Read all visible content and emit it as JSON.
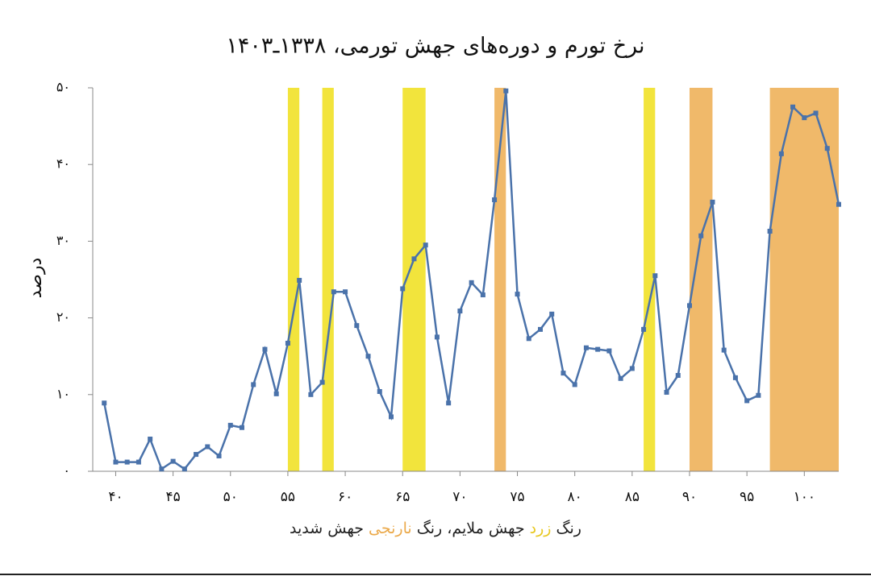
{
  "chart_data": {
    "type": "line",
    "title": "نرخ تورم و دوره‌های جهش تورمی، ۱۳۳۸ـ۱۴۰۳",
    "y_label": "درصد",
    "caption": [
      {
        "text": "رنگ",
        "color": "#222222"
      },
      {
        "text": "زرد",
        "color": "#e8c820"
      },
      {
        "text": "جهش ملایم، رنگ",
        "color": "#222222"
      },
      {
        "text": "نارنجی",
        "color": "#eba94a"
      },
      {
        "text": "جهش شدید",
        "color": "#222222"
      }
    ],
    "x": [
      39,
      40,
      41,
      42,
      43,
      44,
      45,
      46,
      47,
      48,
      49,
      50,
      51,
      52,
      53,
      54,
      55,
      56,
      57,
      58,
      59,
      60,
      61,
      62,
      63,
      64,
      65,
      66,
      67,
      68,
      69,
      70,
      71,
      72,
      73,
      74,
      75,
      76,
      77,
      78,
      79,
      80,
      81,
      82,
      83,
      84,
      85,
      86,
      87,
      88,
      89,
      90,
      91,
      92,
      93,
      94,
      95,
      96,
      97,
      98,
      99,
      100,
      101,
      102,
      103
    ],
    "series": [
      {
        "color": "#4a72aa",
        "values": [
          8.9,
          1.2,
          1.2,
          1.2,
          4.2,
          0.3,
          1.3,
          0.3,
          2.2,
          3.2,
          2.0,
          6.0,
          5.7,
          11.3,
          15.9,
          10.1,
          16.7,
          24.9,
          10.0,
          11.6,
          23.4,
          23.4,
          19.0,
          15.0,
          10.4,
          7.1,
          23.8,
          27.7,
          29.5,
          17.5,
          8.9,
          20.9,
          24.6,
          23.0,
          35.4,
          49.6,
          23.1,
          17.3,
          18.5,
          20.5,
          12.8,
          11.3,
          16.1,
          15.9,
          15.7,
          12.1,
          13.4,
          18.5,
          25.5,
          10.3,
          12.5,
          21.6,
          30.7,
          35.1,
          15.8,
          12.2,
          9.2,
          9.9,
          31.3,
          41.4,
          47.5,
          46.1,
          46.7,
          42.1,
          34.8
        ]
      }
    ],
    "bands": [
      {
        "start": 55,
        "end": 56,
        "color": "#f2e43c"
      },
      {
        "start": 58,
        "end": 59,
        "color": "#f2e43c"
      },
      {
        "start": 65,
        "end": 67,
        "color": "#f2e43c"
      },
      {
        "start": 73,
        "end": 74,
        "color": "#f0b96a"
      },
      {
        "start": 86,
        "end": 87,
        "color": "#f2e43c"
      },
      {
        "start": 90,
        "end": 92,
        "color": "#f0b96a"
      },
      {
        "start": 97,
        "end": 103,
        "color": "#f0b96a"
      }
    ],
    "xlim": [
      38,
      103
    ],
    "ylim": [
      0,
      50
    ],
    "xticks": [
      {
        "value": 40,
        "label": "۴۰"
      },
      {
        "value": 45,
        "label": "۴۵"
      },
      {
        "value": 50,
        "label": "۵۰"
      },
      {
        "value": 55,
        "label": "۵۵"
      },
      {
        "value": 60,
        "label": "۶۰"
      },
      {
        "value": 65,
        "label": "۶۵"
      },
      {
        "value": 70,
        "label": "۷۰"
      },
      {
        "value": 75,
        "label": "۷۵"
      },
      {
        "value": 80,
        "label": "۸۰"
      },
      {
        "value": 85,
        "label": "۸۵"
      },
      {
        "value": 90,
        "label": "۹۰"
      },
      {
        "value": 95,
        "label": "۹۵"
      },
      {
        "value": 100,
        "label": "۱۰۰"
      }
    ],
    "yticks": [
      {
        "value": 0,
        "label": "۰"
      },
      {
        "value": 10,
        "label": "۱۰"
      },
      {
        "value": 20,
        "label": "۲۰"
      },
      {
        "value": 30,
        "label": "۳۰"
      },
      {
        "value": 40,
        "label": "۴۰"
      },
      {
        "value": 50,
        "label": "۵۰"
      }
    ],
    "grid": false
  }
}
